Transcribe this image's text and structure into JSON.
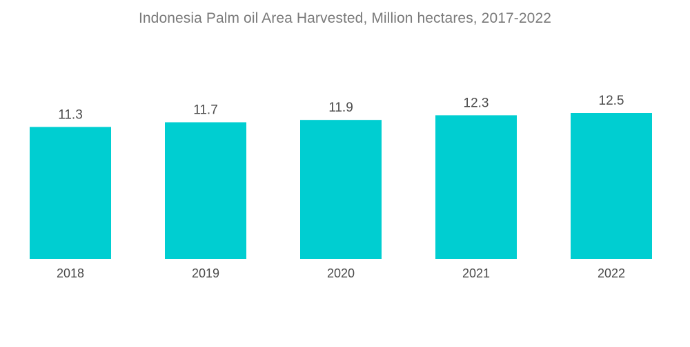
{
  "chart_data": {
    "type": "bar",
    "title": "Indonesia Palm oil Area Harvested, Million hectares, 2017-2022",
    "xlabel": "",
    "ylabel": "",
    "categories": [
      "2018",
      "2019",
      "2020",
      "2021",
      "2022"
    ],
    "values": [
      11.3,
      11.7,
      11.9,
      12.3,
      12.5
    ],
    "data_labels": [
      "11.3",
      "11.7",
      "11.9",
      "12.3",
      "12.5"
    ],
    "ylim": [
      0,
      12.5
    ],
    "grid": false,
    "legend": "none",
    "bar_color": "#00ced1"
  }
}
